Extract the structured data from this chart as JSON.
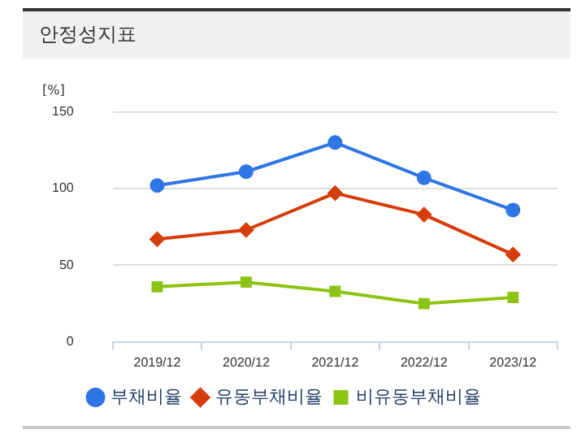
{
  "chart_data": {
    "type": "line",
    "title": "안정성지표",
    "ylabel": "[%]",
    "categories": [
      "2019/12",
      "2020/12",
      "2021/12",
      "2022/12",
      "2023/12"
    ],
    "series": [
      {
        "name": "부채비율",
        "color": "#2f75e6",
        "marker": "circle",
        "values": [
          102,
          111,
          130,
          107,
          86
        ]
      },
      {
        "name": "유동부채비율",
        "color": "#d63d0b",
        "marker": "diamond",
        "values": [
          67,
          73,
          97,
          83,
          57
        ]
      },
      {
        "name": "비유동부채비율",
        "color": "#8cc414",
        "marker": "square",
        "values": [
          36,
          39,
          33,
          25,
          29
        ]
      }
    ],
    "ylim": [
      0,
      150
    ],
    "yticks": [
      0,
      50,
      100,
      150
    ],
    "grid": "y",
    "legend": "bottom"
  }
}
